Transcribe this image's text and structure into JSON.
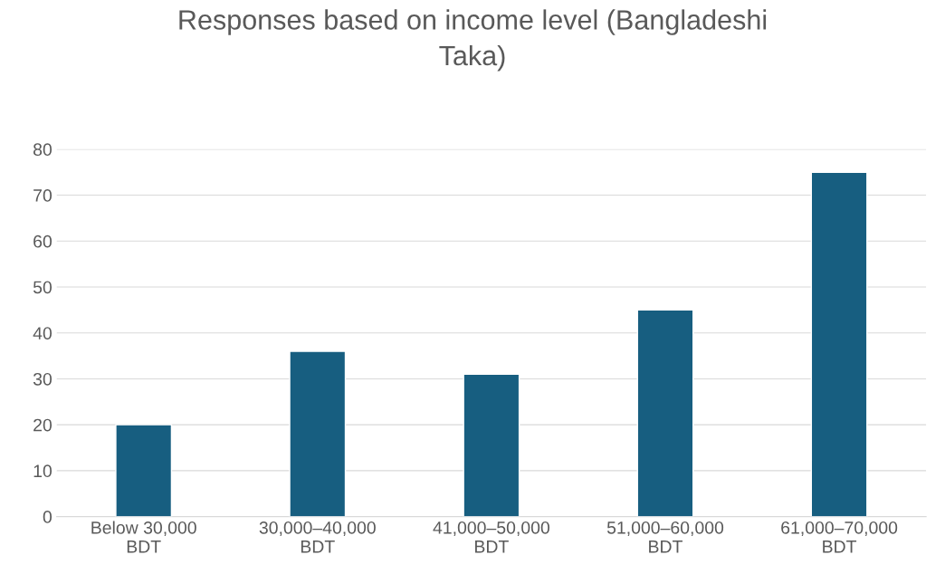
{
  "chart_data": {
    "type": "bar",
    "title": "Responses based on income level (Bangladeshi\nTaka)",
    "categories": [
      "Below 30,000\nBDT",
      "30,000–40,000\nBDT",
      "41,000–50,000\nBDT",
      "51,000–60,000\nBDT",
      "61,000–70,000\nBDT"
    ],
    "values": [
      20,
      36,
      31,
      45,
      75
    ],
    "color": "#175e80",
    "ylim": [
      0,
      80
    ],
    "yticks": [
      0,
      10,
      20,
      30,
      40,
      50,
      60,
      70,
      80
    ],
    "grid": "y"
  }
}
